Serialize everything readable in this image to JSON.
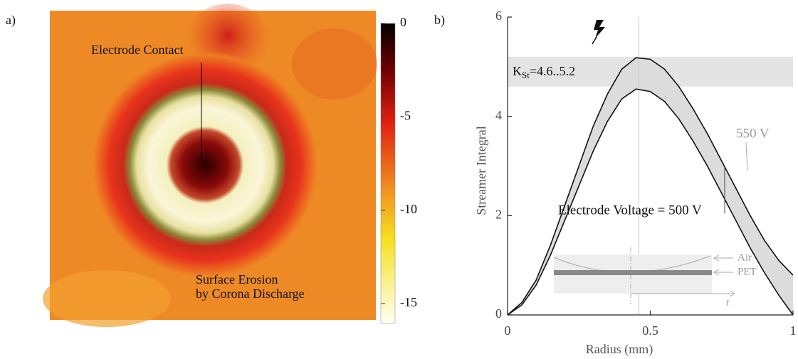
{
  "panel_a": {
    "label": "a)",
    "annotations": [
      "Electrode Contact",
      "Surface Erosion",
      "by Corona Discharge"
    ],
    "colorbar": {
      "lim": [
        -15,
        0
      ],
      "ticks": [
        0,
        -5,
        -10,
        -15
      ]
    }
  },
  "chart_data": {
    "type": "line",
    "panel_label": "b)",
    "xlabel": "Radius (mm)",
    "ylabel": "Streamer Integral",
    "xlim": [
      0,
      1
    ],
    "ylim": [
      0,
      6
    ],
    "xticks": [
      0,
      0.5,
      1
    ],
    "yticks": [
      0,
      2,
      4,
      6
    ],
    "x": [
      0,
      0.05,
      0.1,
      0.15,
      0.2,
      0.25,
      0.3,
      0.35,
      0.4,
      0.45,
      0.5,
      0.55,
      0.6,
      0.65,
      0.7,
      0.75,
      0.8,
      0.85,
      0.9,
      0.95,
      1
    ],
    "series": [
      {
        "name": "Electrode Voltage = 500 V",
        "color": "#111111",
        "values": [
          0,
          0.2,
          0.6,
          1.2,
          1.9,
          2.6,
          3.3,
          3.9,
          4.35,
          4.55,
          4.5,
          4.3,
          3.95,
          3.5,
          3.0,
          2.45,
          1.9,
          1.35,
          0.85,
          0.4,
          0
        ]
      },
      {
        "name": "550 V",
        "color": "#111111",
        "values": [
          0,
          0.25,
          0.7,
          1.4,
          2.2,
          3.0,
          3.8,
          4.45,
          4.95,
          5.18,
          5.15,
          4.95,
          4.6,
          4.15,
          3.65,
          3.1,
          2.55,
          2.0,
          1.5,
          1.1,
          0.8
        ]
      }
    ],
    "band": {
      "ylim": [
        4.6,
        5.2
      ],
      "label": "K",
      "label_sub": "St",
      "label_rest": "=4.6..5.2"
    },
    "vline": 0.46,
    "inset_labels": [
      "Air",
      "PET",
      "r"
    ]
  }
}
